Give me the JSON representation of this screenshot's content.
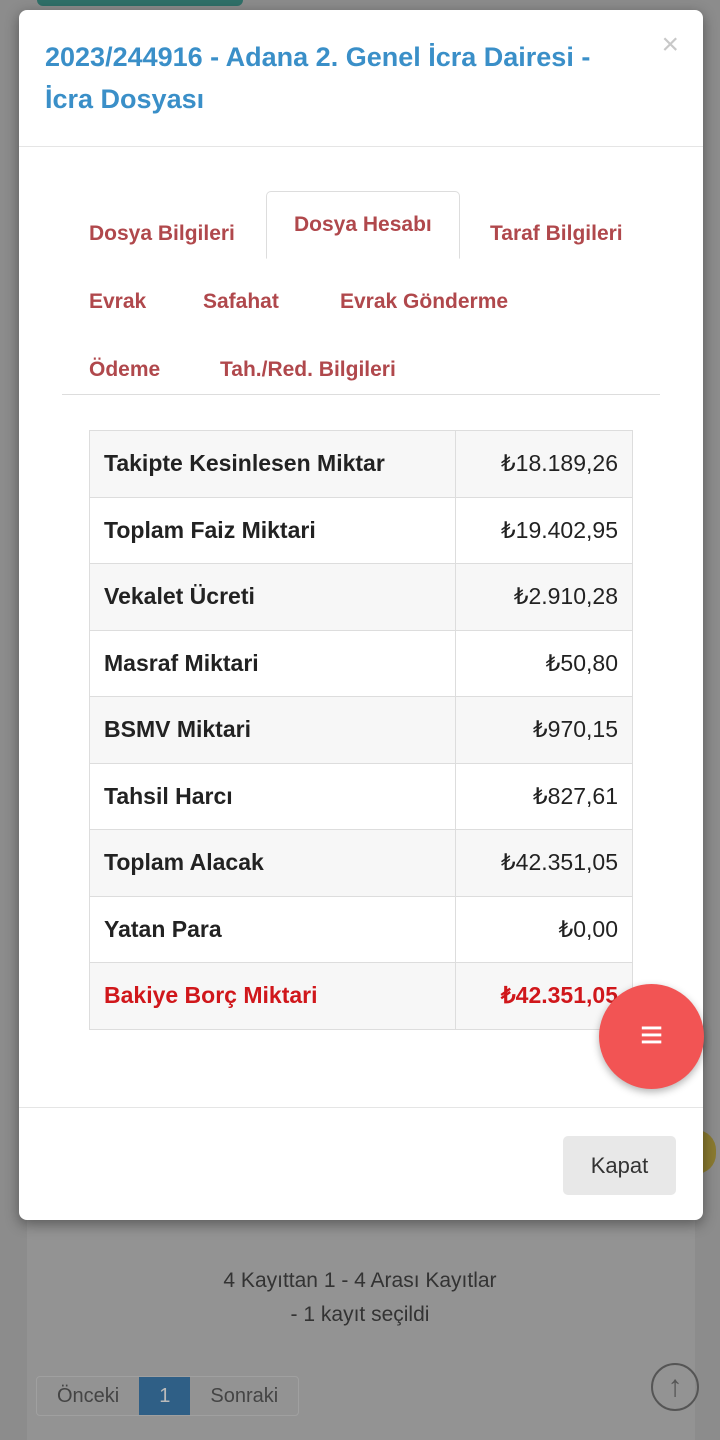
{
  "background": {
    "info_line1": "4 Kayıttan 1 - 4 Arası Kayıtlar",
    "info_line2": "- 1 kayıt seçildi",
    "pager": {
      "prev": "Önceki",
      "page": "1",
      "next": "Sonraki"
    }
  },
  "modal": {
    "title": "2023/244916 - Adana 2. Genel İcra Dairesi - İcra Dosyası",
    "close": "×",
    "tabs": [
      {
        "label": "Dosya Bilgileri"
      },
      {
        "label": "Dosya Hesabı",
        "active": true
      },
      {
        "label": "Taraf Bilgileri"
      },
      {
        "label": "Evrak"
      },
      {
        "label": "Safahat"
      },
      {
        "label": "Evrak Gönderme"
      },
      {
        "label": "Ödeme"
      },
      {
        "label": "Tah./Red. Bilgileri"
      }
    ],
    "rows": [
      {
        "label": "Takipte Kesinlesen Miktar",
        "value": "₺18.189,26"
      },
      {
        "label": "Toplam Faiz Miktari",
        "value": "₺19.402,95"
      },
      {
        "label": "Vekalet Ücreti",
        "value": "₺2.910,28"
      },
      {
        "label": "Masraf Miktari",
        "value": "₺50,80"
      },
      {
        "label": "BSMV Miktari",
        "value": "₺970,15"
      },
      {
        "label": "Tahsil Harcı",
        "value": "₺827,61"
      },
      {
        "label": "Toplam Alacak",
        "value": "₺42.351,05"
      },
      {
        "label": "Yatan Para",
        "value": "₺0,00"
      },
      {
        "label": "Bakiye Borç Miktari",
        "value": "₺42.351,05"
      }
    ],
    "close_button": "Kapat"
  },
  "fab_icon": "≡",
  "scroll_top_icon": "↑",
  "colors": {
    "title": "#3a8fc8",
    "tab": "#b0484c",
    "balance": "#d0171b",
    "fab": "#f25454"
  }
}
